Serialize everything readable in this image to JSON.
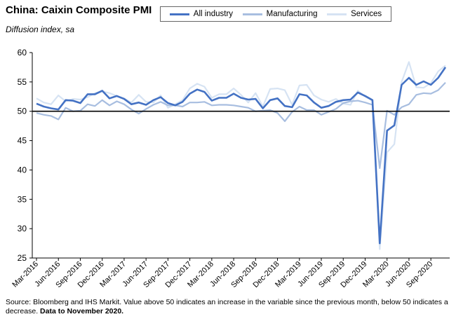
{
  "title": "China: Caixin Composite PMI",
  "subtitle": "Diffusion index, sa",
  "footnote": {
    "text": "Source: Bloomberg and IHS Markit.  Value above 50 indicates an increase in the variable since the previous month, below 50 indicates a decrease.",
    "emphasis": "Data to November 2020."
  },
  "colors": {
    "all_industry": "#4472c4",
    "manufacturing": "#a8bee0",
    "services": "#d6e3f3",
    "axis": "#000000",
    "reference_line": "#000000"
  },
  "chart_data": {
    "type": "line",
    "title": "China: Caixin Composite PMI",
    "ylabel": "Diffusion index, sa",
    "ylim": [
      25,
      60
    ],
    "yticks": [
      25,
      30,
      35,
      40,
      45,
      50,
      55,
      60
    ],
    "reference_line": 50,
    "grid": false,
    "legend_position": "top",
    "x": [
      "Mar-2016",
      "Apr-2016",
      "May-2016",
      "Jun-2016",
      "Jul-2016",
      "Aug-2016",
      "Sep-2016",
      "Oct-2016",
      "Nov-2016",
      "Dec-2016",
      "Jan-2017",
      "Feb-2017",
      "Mar-2017",
      "Apr-2017",
      "May-2017",
      "Jun-2017",
      "Jul-2017",
      "Aug-2017",
      "Sep-2017",
      "Oct-2017",
      "Nov-2017",
      "Dec-2017",
      "Jan-2018",
      "Feb-2018",
      "Mar-2018",
      "Apr-2018",
      "May-2018",
      "Jun-2018",
      "Jul-2018",
      "Aug-2018",
      "Sep-2018",
      "Oct-2018",
      "Nov-2018",
      "Dec-2018",
      "Jan-2019",
      "Feb-2019",
      "Mar-2019",
      "Apr-2019",
      "May-2019",
      "Jun-2019",
      "Jul-2019",
      "Aug-2019",
      "Sep-2019",
      "Oct-2019",
      "Nov-2019",
      "Dec-2019",
      "Jan-2020",
      "Feb-2020",
      "Mar-2020",
      "Apr-2020",
      "May-2020",
      "Jun-2020",
      "Jul-2020",
      "Aug-2020",
      "Sep-2020",
      "Oct-2020",
      "Nov-2020"
    ],
    "x_tick_labels": [
      "Mar-2016",
      "Jun-2016",
      "Sep-2016",
      "Dec-2016",
      "Mar-2017",
      "Jun-2017",
      "Sep-2017",
      "Dec-2017",
      "Mar-2018",
      "Jun-2018",
      "Sep-2018",
      "Dec-2018",
      "Mar-2019",
      "Jun-2019",
      "Sep-2019",
      "Dec-2019",
      "Mar-2020",
      "Jun-2020",
      "Sep-2020"
    ],
    "series": [
      {
        "name": "Services",
        "key": "services",
        "values": [
          52.2,
          51.5,
          51.2,
          52.7,
          51.7,
          52.1,
          52.0,
          52.4,
          53.1,
          53.4,
          53.1,
          52.6,
          52.2,
          51.5,
          52.8,
          51.6,
          51.5,
          52.7,
          50.6,
          51.2,
          51.9,
          53.9,
          54.7,
          54.2,
          52.3,
          52.9,
          52.9,
          53.9,
          52.8,
          51.5,
          53.1,
          50.8,
          53.8,
          53.9,
          53.6,
          51.1,
          54.4,
          54.5,
          52.7,
          52.0,
          51.6,
          52.1,
          51.3,
          51.1,
          53.5,
          52.5,
          51.8,
          26.5,
          43.0,
          44.4,
          55.0,
          58.4,
          54.1,
          54.0,
          54.8,
          56.8,
          57.8
        ]
      },
      {
        "name": "Manufacturing",
        "key": "manufacturing",
        "values": [
          49.7,
          49.4,
          49.2,
          48.6,
          50.6,
          50.0,
          50.1,
          51.2,
          50.9,
          51.9,
          51.0,
          51.7,
          51.2,
          50.3,
          49.6,
          50.4,
          51.1,
          51.6,
          51.0,
          51.0,
          50.8,
          51.5,
          51.5,
          51.6,
          51.0,
          51.1,
          51.1,
          51.0,
          50.8,
          50.6,
          50.0,
          50.1,
          50.2,
          49.7,
          48.3,
          49.9,
          50.8,
          50.2,
          50.2,
          49.4,
          49.9,
          50.4,
          51.4,
          51.7,
          51.8,
          51.5,
          51.1,
          40.3,
          50.1,
          49.4,
          50.7,
          51.2,
          52.8,
          53.1,
          53.0,
          53.6,
          54.9
        ]
      },
      {
        "name": "All industry",
        "key": "all_industry",
        "values": [
          51.3,
          50.8,
          50.5,
          50.3,
          51.9,
          51.8,
          51.4,
          52.9,
          52.9,
          53.5,
          52.2,
          52.6,
          52.1,
          51.2,
          51.5,
          51.1,
          51.9,
          52.4,
          51.4,
          51.0,
          51.6,
          53.0,
          53.7,
          53.3,
          51.8,
          52.3,
          52.3,
          53.0,
          52.3,
          52.0,
          52.1,
          50.5,
          51.9,
          52.2,
          50.9,
          50.7,
          52.9,
          52.7,
          51.5,
          50.6,
          50.9,
          51.6,
          51.9,
          52.0,
          53.2,
          52.6,
          51.9,
          27.5,
          46.7,
          47.6,
          54.5,
          55.7,
          54.5,
          55.1,
          54.5,
          55.7,
          57.5
        ]
      }
    ]
  }
}
